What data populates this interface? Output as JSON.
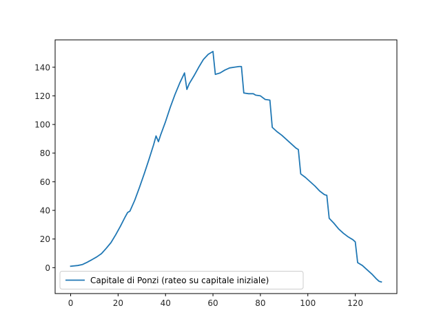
{
  "chart_data": {
    "type": "line",
    "title": "",
    "xlabel": "",
    "ylabel": "",
    "xlim": [
      -6.55,
      137.55
    ],
    "ylim": [
      -18.1,
      159.1
    ],
    "xticks": [
      0,
      20,
      40,
      60,
      80,
      100,
      120
    ],
    "yticks": [
      0,
      20,
      40,
      60,
      80,
      100,
      120,
      140
    ],
    "grid": false,
    "legend_position": "lower-left",
    "series": [
      {
        "name": "Capitale di Ponzi (rateo su capitale iniziale)",
        "color": "#1f77b4",
        "x": [
          0,
          3,
          5,
          7,
          9,
          11,
          13,
          15,
          17,
          19,
          21,
          23,
          24,
          25,
          27,
          29,
          31,
          33,
          35,
          36,
          37,
          38,
          40,
          42,
          44,
          46,
          48,
          49,
          50,
          52,
          54,
          56,
          58,
          60,
          61,
          63,
          65,
          67,
          69,
          71,
          72,
          73,
          75,
          77,
          78,
          80,
          82,
          84,
          85,
          87,
          89,
          91,
          93,
          95,
          96,
          97,
          99,
          101,
          103,
          105,
          107,
          108,
          109,
          111,
          113,
          115,
          117,
          119,
          120,
          121,
          123,
          125,
          127,
          129,
          130,
          131
        ],
        "y": [
          1,
          1.5,
          2.2,
          3.8,
          5.6,
          7.5,
          9.8,
          13.5,
          17.5,
          23,
          29,
          35.5,
          38.5,
          39.5,
          47,
          56,
          65.5,
          75.5,
          86,
          92,
          88,
          93,
          102,
          112,
          121,
          129,
          136,
          124.5,
          128.5,
          134,
          140,
          145.5,
          149,
          151,
          135,
          136,
          138,
          139.5,
          140,
          140.5,
          140.5,
          122,
          121.5,
          121.5,
          120.5,
          120,
          117.5,
          117,
          98,
          95,
          92.5,
          89.5,
          86.5,
          83.5,
          82.5,
          65.5,
          63,
          60,
          57,
          53.5,
          51,
          50.5,
          34.5,
          31,
          27,
          24,
          21.5,
          19.5,
          18,
          3.5,
          1.5,
          -1.5,
          -4.5,
          -8,
          -9.5,
          -10
        ]
      }
    ]
  }
}
